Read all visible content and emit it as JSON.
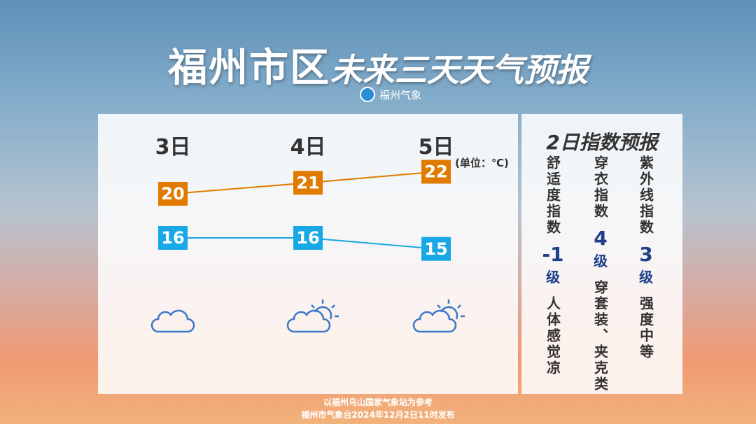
{
  "header": {
    "title": "福州市区",
    "title_italic": "未来三天天气预报",
    "logo": "福州气象"
  },
  "forecast": {
    "unit": "(单位：℃)",
    "days": [
      {
        "date": "3日",
        "high": 20,
        "low": 16
      },
      {
        "date": "4日",
        "high": 21,
        "low": 16
      },
      {
        "date": "5日",
        "high": 22,
        "low": 15
      }
    ]
  },
  "index_panel": {
    "title": "2日指数预报",
    "items": [
      {
        "name": "舒适度指数",
        "level": "-1",
        "unit": "级",
        "desc": "人体感觉凉"
      },
      {
        "name": "穿衣指数",
        "level": "4",
        "unit": "级",
        "desc": "穿套装、夹克类"
      },
      {
        "name": "紫外线指数",
        "level": "3",
        "unit": "级",
        "desc": "强度中等"
      }
    ]
  },
  "footer": {
    "line1": "以福州乌山国家气象站为参考",
    "line2": "福州市气象台2024年12月2日11时发布"
  }
}
